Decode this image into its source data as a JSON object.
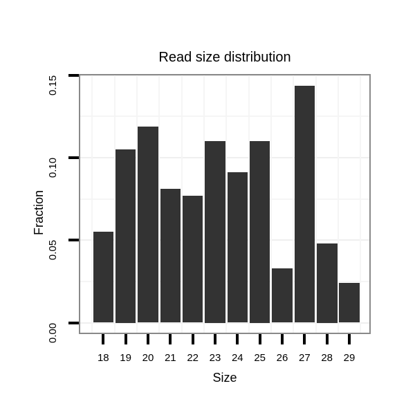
{
  "page": {
    "background": "#FFFFFF"
  },
  "chart_data": {
    "type": "bar",
    "title": "Read size distribution",
    "xlabel": "Size",
    "ylabel": "Fraction",
    "categories": [
      "18",
      "19",
      "20",
      "21",
      "22",
      "23",
      "24",
      "25",
      "26",
      "27",
      "28",
      "29"
    ],
    "values": [
      0.055,
      0.105,
      0.119,
      0.081,
      0.077,
      0.11,
      0.091,
      0.11,
      0.033,
      0.1435,
      0.048,
      0.024
    ],
    "y_tick_labels": [
      "0.00",
      "0.05",
      "0.10",
      "0.15"
    ],
    "y_tick_values": [
      0,
      0.05,
      0.1,
      0.15
    ],
    "ylim": [
      -0.007,
      0.151
    ],
    "grid": "on",
    "grid_step_minor": 0.025,
    "legend": "none",
    "colors": {
      "bar": "#333333",
      "panel_border": "#898989",
      "grid_major": "#EFEFEF",
      "grid_minor": "#F5F5F5",
      "tick": "#000000",
      "text": "#000000",
      "background": "#FFFFFF"
    }
  }
}
